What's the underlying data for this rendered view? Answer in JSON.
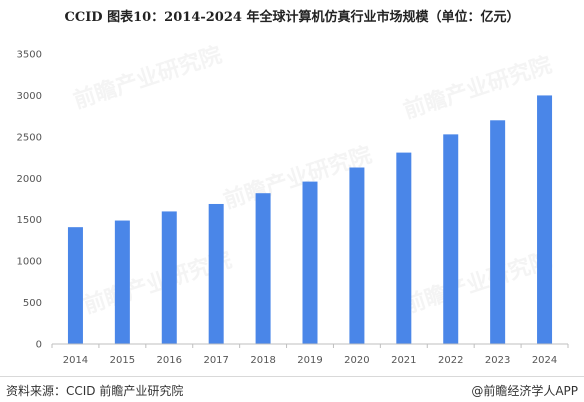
{
  "header": {
    "title": "CCID  图表10：2014-2024 年全球计算机仿真行业市场规模（单位：亿元）"
  },
  "footer": {
    "source": "资料来源：CCID 前瞻产业研究院",
    "credit": "@前瞻经济学人APP"
  },
  "watermark": {
    "text": "前瞻产业研究院"
  },
  "colors": {
    "bar": "#4a86e8",
    "axis": "#bfbfbf"
  },
  "chart_data": {
    "type": "bar",
    "categories": [
      "2014",
      "2015",
      "2016",
      "2017",
      "2018",
      "2019",
      "2020",
      "2021",
      "2022",
      "2023",
      "2024"
    ],
    "values": [
      1410,
      1490,
      1600,
      1690,
      1820,
      1960,
      2130,
      2310,
      2530,
      2700,
      3000
    ],
    "ylim": [
      0,
      3500
    ],
    "yticks": [
      0,
      500,
      1000,
      1500,
      2000,
      2500,
      3000,
      3500
    ],
    "grid": false,
    "legend": "none"
  }
}
